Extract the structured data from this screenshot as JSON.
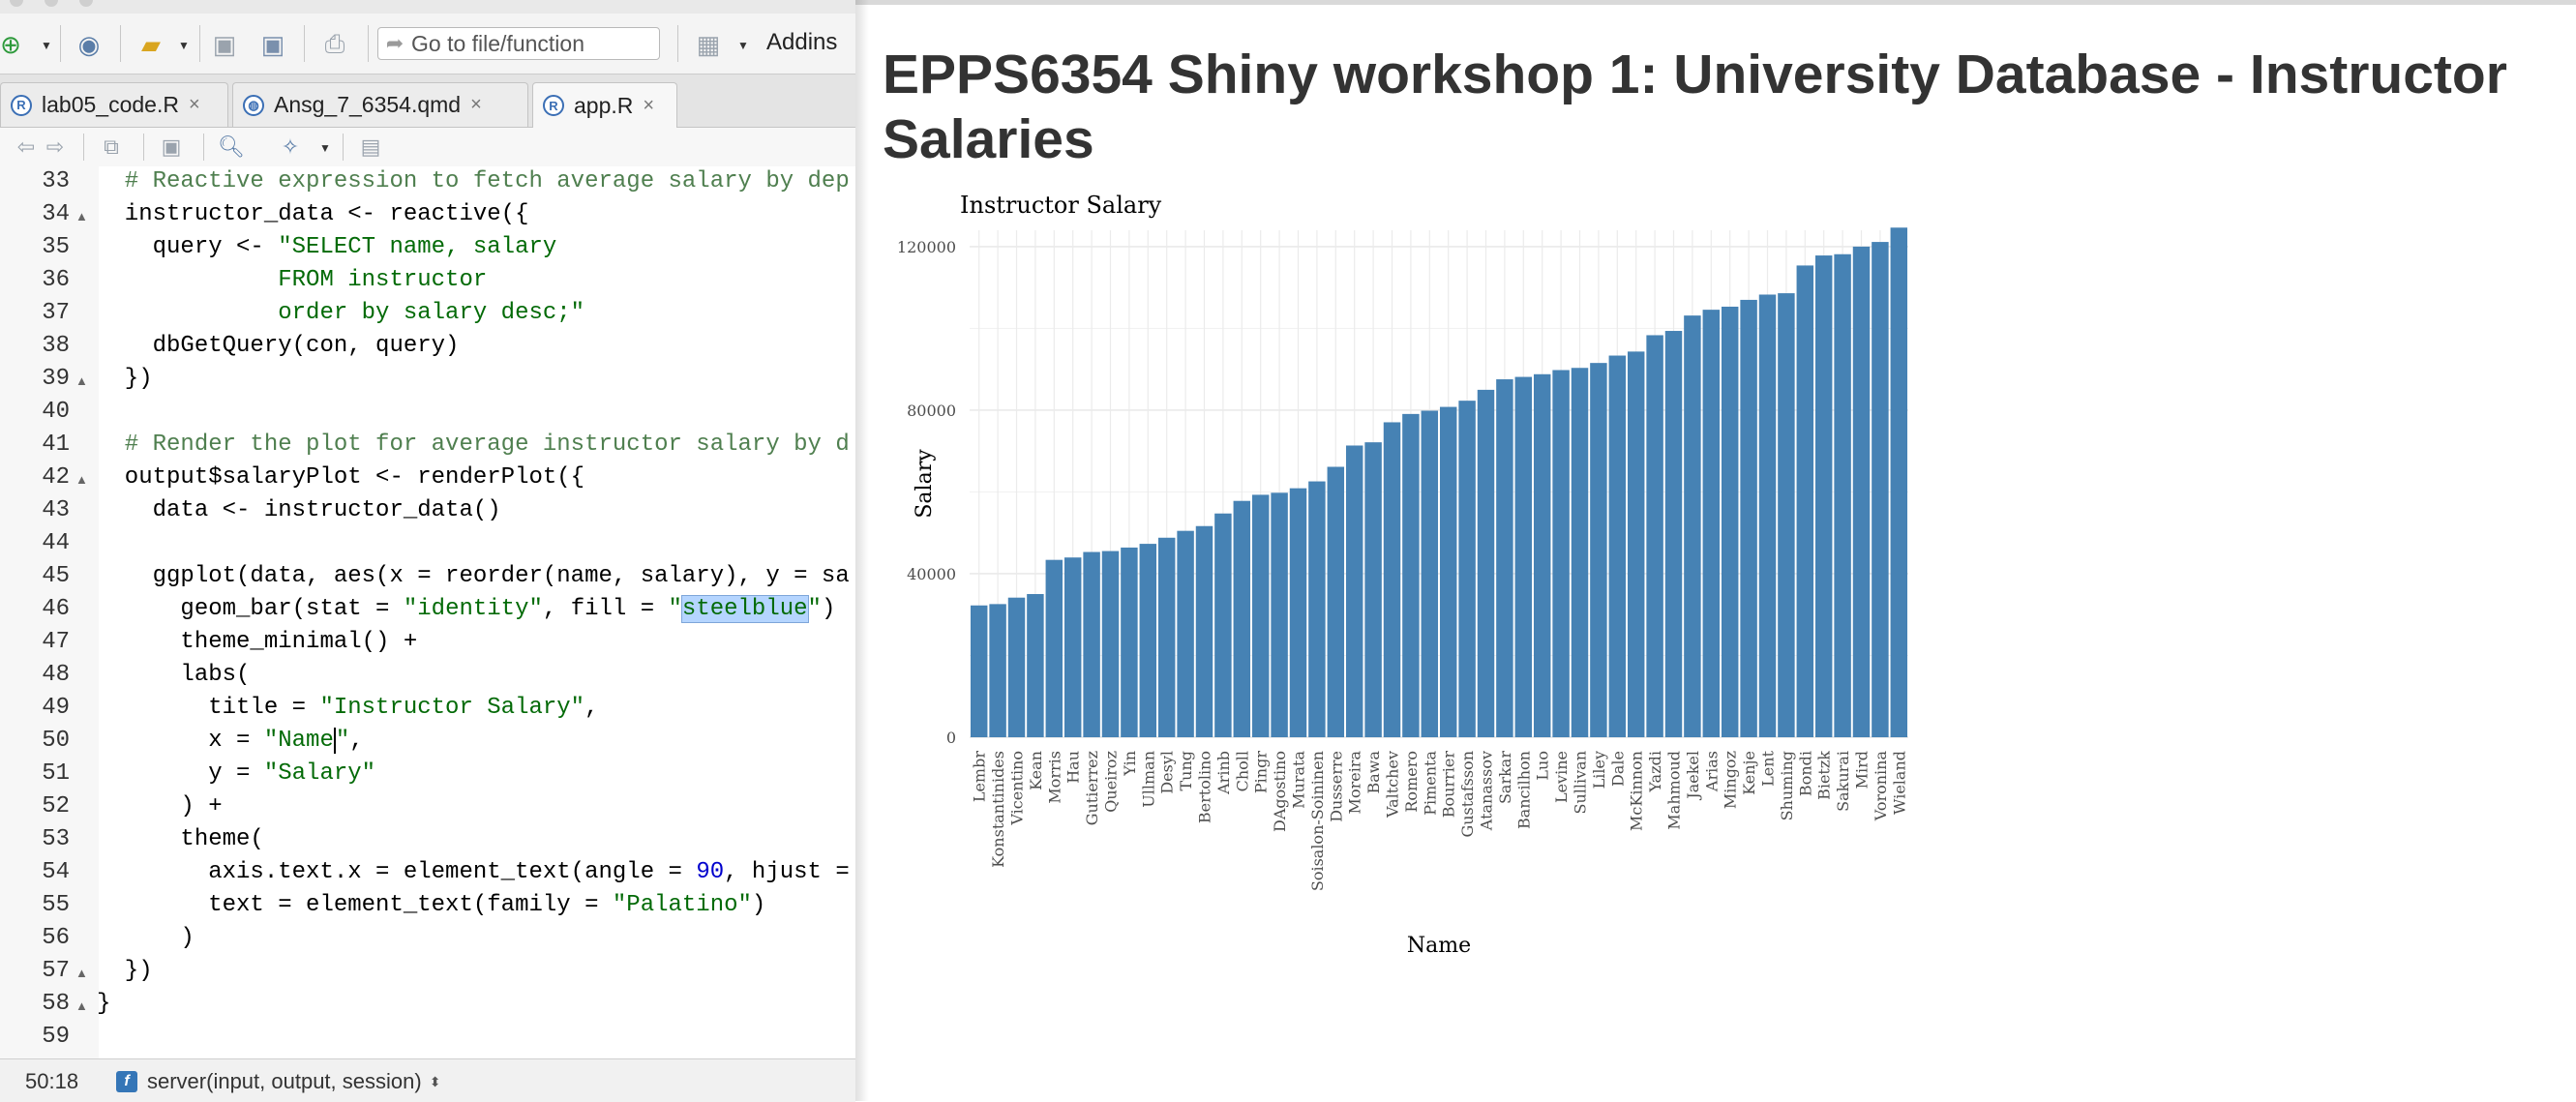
{
  "toolbar": {
    "goto_placeholder": "Go to file/function",
    "addins_label": "Addins"
  },
  "tabs": [
    {
      "label": "lab05_code.R",
      "icon": "r-file-icon"
    },
    {
      "label": "Ansg_7_6354.qmd",
      "icon": "quarto-file-icon"
    },
    {
      "label": "app.R",
      "icon": "r-file-icon",
      "active": true
    }
  ],
  "editor": {
    "first_line": 33,
    "lines": [
      [
        [
          "c-cmt",
          "  # Reactive expression to fetch average salary by dep"
        ]
      ],
      [
        [
          "",
          "  instructor_data <- reactive({"
        ]
      ],
      [
        [
          "",
          "    query <- "
        ],
        [
          "c-str",
          "\"SELECT name, salary"
        ]
      ],
      [
        [
          "c-str",
          "             FROM instructor"
        ]
      ],
      [
        [
          "c-str",
          "             order by salary desc;\""
        ]
      ],
      [
        [
          "",
          "    dbGetQuery(con, query)"
        ]
      ],
      [
        [
          "",
          "  })"
        ]
      ],
      [
        [
          "",
          ""
        ]
      ],
      [
        [
          "c-cmt",
          "  # Render the plot for average instructor salary by d"
        ]
      ],
      [
        [
          "",
          "  output$salaryPlot <- renderPlot({"
        ]
      ],
      [
        [
          "",
          "    data <- instructor_data()"
        ]
      ],
      [
        [
          "",
          ""
        ]
      ],
      [
        [
          "",
          "    ggplot(data, aes(x = reorder(name, salary), y = sa"
        ]
      ],
      [
        [
          "",
          "      geom_bar(stat = "
        ],
        [
          "c-str",
          "\"identity\""
        ],
        [
          "",
          ", fill = "
        ],
        [
          "c-str",
          "\""
        ],
        [
          "c-str c-sel",
          "steelblue"
        ],
        [
          "c-str",
          "\""
        ],
        [
          "",
          ")"
        ]
      ],
      [
        [
          "",
          "      theme_minimal() +"
        ]
      ],
      [
        [
          "",
          "      labs("
        ]
      ],
      [
        [
          "",
          "        title = "
        ],
        [
          "c-str",
          "\"Instructor Salary\""
        ],
        [
          "",
          ","
        ]
      ],
      [
        [
          "",
          "        x = "
        ],
        [
          "c-str",
          "\"Name"
        ],
        [
          "c-str c-cur",
          "\""
        ],
        [
          "",
          ","
        ]
      ],
      [
        [
          "",
          "        y = "
        ],
        [
          "c-str",
          "\"Salary\""
        ]
      ],
      [
        [
          "",
          "      ) +"
        ]
      ],
      [
        [
          "",
          "      theme("
        ]
      ],
      [
        [
          "",
          "        axis.text.x = element_text(angle = "
        ],
        [
          "c-num",
          "90"
        ],
        [
          "",
          ", hjust ="
        ]
      ],
      [
        [
          "",
          "        text = element_text(family = "
        ],
        [
          "c-str",
          "\"Palatino\""
        ],
        [
          "",
          ")"
        ]
      ],
      [
        [
          "",
          "      )"
        ]
      ],
      [
        [
          "",
          "  })"
        ]
      ],
      [
        [
          "",
          "}"
        ]
      ],
      [
        [
          "",
          ""
        ]
      ]
    ],
    "fold_lines": [
      34,
      39,
      42,
      57,
      58
    ]
  },
  "status": {
    "position": "50:18",
    "function": "server(input, output, session)"
  },
  "app": {
    "title": "EPPS6354 Shiny workshop 1: University Database - Instructor Salaries"
  },
  "chart_data": {
    "type": "bar",
    "title": "Instructor Salary",
    "xlabel": "Name",
    "ylabel": "Salary",
    "ylim": [
      0,
      124000
    ],
    "yticks": [
      0,
      40000,
      80000,
      120000
    ],
    "fill": "#4682b4",
    "grid": true,
    "categories": [
      "Lembr",
      "Konstantinides",
      "Vicentino",
      "Kean",
      "Morris",
      "Hau",
      "Gutierrez",
      "Queiroz",
      "Yin",
      "Ullman",
      "Desyl",
      "Tung",
      "Bertolino",
      "Arinb",
      "Choll",
      "Pingr",
      "DAgostino",
      "Murata",
      "Soisalon-Soininen",
      "Dusserre",
      "Moreira",
      "Bawa",
      "Valtchev",
      "Romero",
      "Pimenta",
      "Bourrier",
      "Gustafsson",
      "Atanassov",
      "Sarkar",
      "Bancilhon",
      "Luo",
      "Levine",
      "Sullivan",
      "Liley",
      "Dale",
      "McKinnon",
      "Yazdi",
      "Mahmoud",
      "Jaekel",
      "Arias",
      "Mingoz",
      "Kenje",
      "Lent",
      "Shuming",
      "Bondi",
      "Bietzk",
      "Sakurai",
      "Mird",
      "Voronina",
      "Wieland"
    ],
    "values": [
      32241,
      32570,
      34148,
      35023,
      43381,
      43966,
      45311,
      45538,
      46397,
      47307,
      48803,
      50482,
      51648,
      54728,
      57807,
      59303,
      59795,
      60897,
      62579,
      66143,
      71351,
      72140,
      77036,
      79070,
      79866,
      80797,
      82313,
      84978,
      87549,
      88133,
      88792,
      89805,
      90339,
      91545,
      93349,
      94334,
      98334,
      99383,
      103147,
      104563,
      105311,
      106978,
      108270,
      108600,
      115383,
      117836,
      118144,
      120000,
      121141,
      124651
    ]
  }
}
